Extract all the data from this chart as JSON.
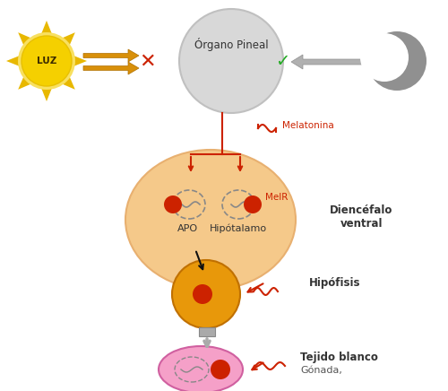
{
  "bg_color": "#ffffff",
  "pineal_label": "Órgano Pineal",
  "melatonina_label": "Melatonina",
  "melr_label": "MelR",
  "apo_label": "APO",
  "hipotalamo_label": "Hipótalamo",
  "diencefalo_label": "Diencéfalo\nventral",
  "hipofisis_label": "Hipófisis",
  "tejido_label": "Tejido blanco",
  "gonada_label": "Gónada,",
  "luz_label": "LUZ",
  "pineal_color": "#d8d8d8",
  "pineal_edge": "#c0c0c0",
  "diencefalo_color": "#f5c98a",
  "diencefalo_edge": "#e8b070",
  "hipofisis_color": "#e8980a",
  "hipofisis_edge": "#c07000",
  "gonada_color": "#f5a0c8",
  "gonada_edge": "#d060a0",
  "red_dot_color": "#cc2200",
  "red_color": "#cc2200",
  "green_color": "#22aa22",
  "sun_color": "#f5d000",
  "sun_ray_color": "#e8b800",
  "arrow_yellow": "#d8900a",
  "gray_arrow_color": "#b0b0b0",
  "moon_color": "#909090",
  "stalk_color": "#aaaaaa",
  "black": "#111111",
  "label_color": "#333333",
  "nucleus_edge": "#888888",
  "squiggle_color": "#888888"
}
